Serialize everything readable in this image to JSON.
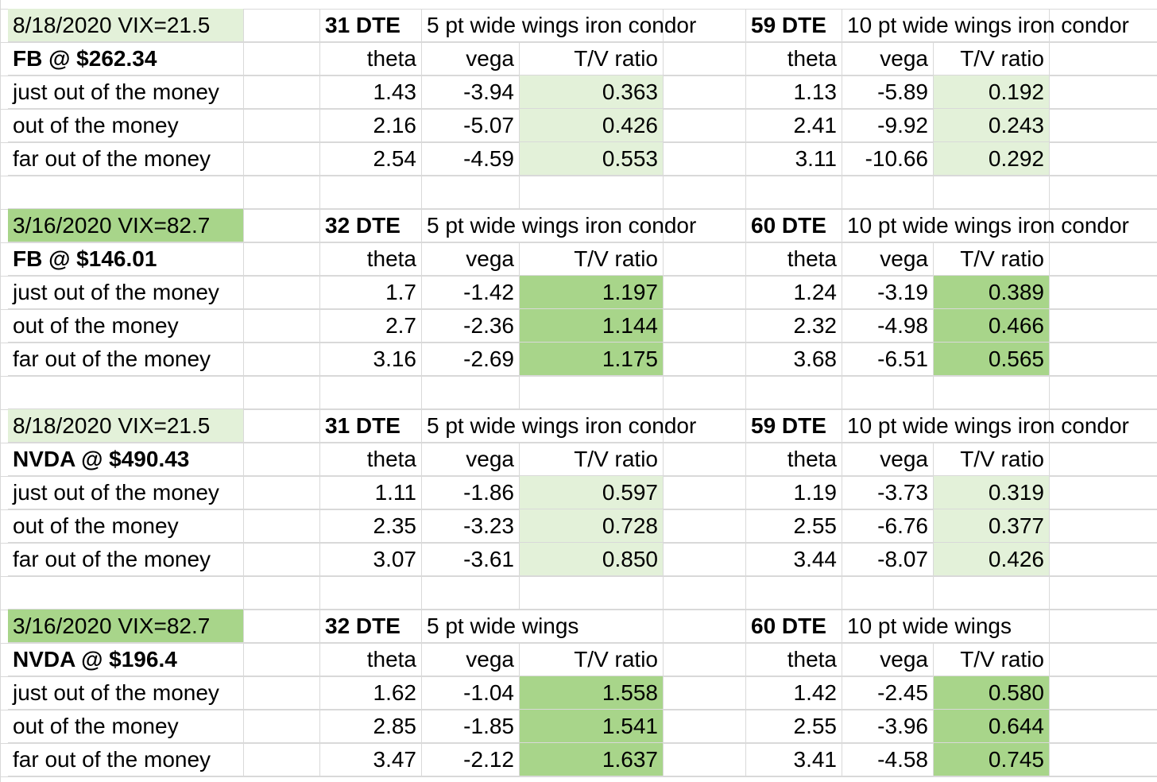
{
  "colors": {
    "light_green": "#e3f1d9",
    "dark_green": "#a8d58a",
    "grid": "#d9d9d9"
  },
  "blocks": [
    {
      "date": "8/18/2020 VIX=21.5",
      "shade": "light",
      "ticker": "FB @ $262.34",
      "dte1": "31 DTE",
      "wings1": "5 pt wide wings iron condor",
      "dte2": "59 DTE",
      "wings2": "10 pt wide wings iron condor",
      "headers": {
        "theta": "theta",
        "vega": "vega",
        "ratio": "T/V ratio"
      },
      "rows": [
        {
          "label": "just out of the money",
          "theta1": "1.43",
          "vega1": "-3.94",
          "ratio1": "0.363",
          "theta2": "1.13",
          "vega2": "-5.89",
          "ratio2": "0.192"
        },
        {
          "label": "out of the money",
          "theta1": "2.16",
          "vega1": "-5.07",
          "ratio1": "0.426",
          "theta2": "2.41",
          "vega2": "-9.92",
          "ratio2": "0.243"
        },
        {
          "label": "far out of the money",
          "theta1": "2.54",
          "vega1": "-4.59",
          "ratio1": "0.553",
          "theta2": "3.11",
          "vega2": "-10.66",
          "ratio2": "0.292"
        }
      ]
    },
    {
      "date": "3/16/2020  VIX=82.7",
      "shade": "dark",
      "ticker": "FB @ $146.01",
      "dte1": "32 DTE",
      "wings1": "5 pt wide wings iron condor",
      "dte2": "60 DTE",
      "wings2": "10 pt wide wings iron condor",
      "headers": {
        "theta": "theta",
        "vega": "vega",
        "ratio": "T/V ratio"
      },
      "rows": [
        {
          "label": "just out of the money",
          "theta1": "1.7",
          "vega1": "-1.42",
          "ratio1": "1.197",
          "theta2": "1.24",
          "vega2": "-3.19",
          "ratio2": "0.389"
        },
        {
          "label": "out of the money",
          "theta1": "2.7",
          "vega1": "-2.36",
          "ratio1": "1.144",
          "theta2": "2.32",
          "vega2": "-4.98",
          "ratio2": "0.466"
        },
        {
          "label": "far out of the money",
          "theta1": "3.16",
          "vega1": "-2.69",
          "ratio1": "1.175",
          "theta2": "3.68",
          "vega2": "-6.51",
          "ratio2": "0.565"
        }
      ]
    },
    {
      "date": "8/18/2020 VIX=21.5",
      "shade": "light",
      "ticker": "NVDA @ $490.43",
      "dte1": "31 DTE",
      "wings1": "5 pt wide wings iron condor",
      "dte2": "59 DTE",
      "wings2": "10 pt wide wings iron condor",
      "headers": {
        "theta": "theta",
        "vega": "vega",
        "ratio": "T/V ratio"
      },
      "rows": [
        {
          "label": "just out of the money",
          "theta1": "1.11",
          "vega1": "-1.86",
          "ratio1": "0.597",
          "theta2": "1.19",
          "vega2": "-3.73",
          "ratio2": "0.319"
        },
        {
          "label": "out of the money",
          "theta1": "2.35",
          "vega1": "-3.23",
          "ratio1": "0.728",
          "theta2": "2.55",
          "vega2": "-6.76",
          "ratio2": "0.377"
        },
        {
          "label": "far out of the money",
          "theta1": "3.07",
          "vega1": "-3.61",
          "ratio1": "0.850",
          "theta2": "3.44",
          "vega2": "-8.07",
          "ratio2": "0.426"
        }
      ]
    },
    {
      "date": "3/16/2020  VIX=82.7",
      "shade": "dark",
      "ticker": "NVDA @ $196.4",
      "dte1": "32 DTE",
      "wings1": "5 pt wide wings",
      "dte2": "60 DTE",
      "wings2": "10 pt wide wings",
      "headers": {
        "theta": "theta",
        "vega": "vega",
        "ratio": "T/V ratio"
      },
      "rows": [
        {
          "label": "just out of the money",
          "theta1": "1.62",
          "vega1": "-1.04",
          "ratio1": "1.558",
          "theta2": "1.42",
          "vega2": "-2.45",
          "ratio2": "0.580"
        },
        {
          "label": "out of the money",
          "theta1": "2.85",
          "vega1": "-1.85",
          "ratio1": "1.541",
          "theta2": "2.55",
          "vega2": "-3.96",
          "ratio2": "0.644"
        },
        {
          "label": "far out of the money",
          "theta1": "3.47",
          "vega1": "-2.12",
          "ratio1": "1.637",
          "theta2": "3.41",
          "vega2": "-4.58",
          "ratio2": "0.745"
        }
      ]
    }
  ]
}
